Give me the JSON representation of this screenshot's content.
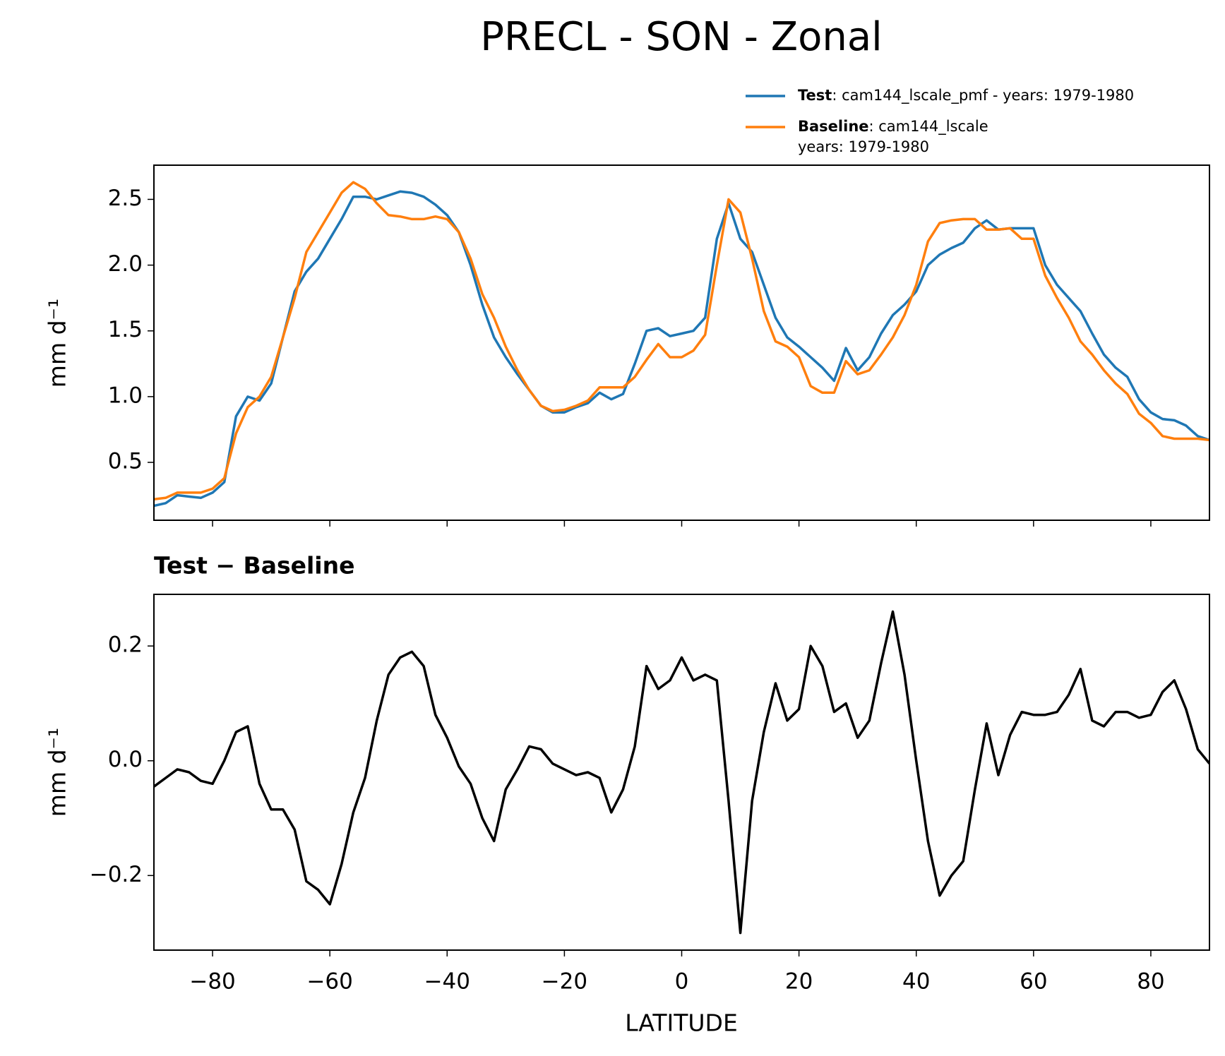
{
  "chart_data": [
    {
      "type": "line",
      "title": "PRECL - SON - Zonal",
      "ylabel": "mm d⁻¹",
      "ylim": [
        0.06,
        2.76
      ],
      "yticks": [
        0.5,
        {
          "value": 1,
          "label": "1.0"
        },
        1.5,
        {
          "value": 2,
          "label": "2.0"
        },
        2.5
      ],
      "grid": false,
      "legend": "upper right",
      "series": [
        {
          "name": "Test",
          "description": [
            ": cam144_lscale_pmf - years: 1979-1980"
          ],
          "color": "#1f77b4",
          "values": [
            0.17,
            0.19,
            0.25,
            0.24,
            0.23,
            0.27,
            0.35,
            0.85,
            1.0,
            0.97,
            1.1,
            1.45,
            1.8,
            1.95,
            2.05,
            2.2,
            2.35,
            2.52,
            2.52,
            2.5,
            2.53,
            2.56,
            2.55,
            2.52,
            2.46,
            2.38,
            2.25,
            2.0,
            1.7,
            1.45,
            1.3,
            1.17,
            1.05,
            0.93,
            0.88,
            0.88,
            0.92,
            0.95,
            1.03,
            0.98,
            1.02,
            1.25,
            1.5,
            1.52,
            1.46,
            1.48,
            1.5,
            1.6,
            2.2,
            2.47,
            2.2,
            2.1,
            1.85,
            1.6,
            1.45,
            1.38,
            1.3,
            1.22,
            1.12,
            1.37,
            1.2,
            1.3,
            1.48,
            1.62,
            1.7,
            1.8,
            2.0,
            2.08,
            2.13,
            2.17,
            2.28,
            2.34,
            2.27,
            2.28,
            2.28,
            2.28,
            2.0,
            1.85,
            1.75,
            1.65,
            1.48,
            1.32,
            1.22,
            1.15,
            0.98,
            0.88,
            0.83,
            0.82,
            0.78,
            0.7,
            0.67
          ]
        },
        {
          "name": "Baseline",
          "description": [
            ": cam144_lscale",
            "years: 1979-1980"
          ],
          "color": "#ff7f0e",
          "values": [
            0.22,
            0.23,
            0.27,
            0.27,
            0.27,
            0.3,
            0.38,
            0.72,
            0.92,
            1.0,
            1.15,
            1.45,
            1.75,
            2.1,
            2.25,
            2.4,
            2.55,
            2.63,
            2.58,
            2.47,
            2.38,
            2.37,
            2.35,
            2.35,
            2.37,
            2.35,
            2.25,
            2.05,
            1.78,
            1.6,
            1.38,
            1.2,
            1.05,
            0.93,
            0.89,
            0.9,
            0.93,
            0.97,
            1.07,
            1.07,
            1.07,
            1.15,
            1.28,
            1.4,
            1.3,
            1.3,
            1.35,
            1.47,
            2.0,
            2.5,
            2.4,
            2.05,
            1.65,
            1.42,
            1.38,
            1.3,
            1.08,
            1.03,
            1.03,
            1.27,
            1.17,
            1.2,
            1.32,
            1.45,
            1.62,
            1.85,
            2.18,
            2.32,
            2.34,
            2.35,
            2.35,
            2.27,
            2.27,
            2.28,
            2.2,
            2.2,
            1.92,
            1.75,
            1.6,
            1.42,
            1.32,
            1.2,
            1.1,
            1.02,
            0.87,
            0.8,
            0.7,
            0.68,
            0.68,
            0.68,
            0.67
          ]
        }
      ]
    },
    {
      "type": "line",
      "title": "Test − Baseline",
      "ylabel": "mm d⁻¹",
      "xlabel": "LATITUDE",
      "x": [
        -90,
        -88,
        -86,
        -84,
        -82,
        -80,
        -78,
        -76,
        -74,
        -72,
        -70,
        -68,
        -66,
        -64,
        -62,
        -60,
        -58,
        -56,
        -54,
        -52,
        -50,
        -48,
        -46,
        -44,
        -42,
        -40,
        -38,
        -36,
        -34,
        -32,
        -30,
        -28,
        -26,
        -24,
        -22,
        -20,
        -18,
        -16,
        -14,
        -12,
        -10,
        -8,
        -6,
        -4,
        -2,
        0,
        2,
        4,
        6,
        8,
        10,
        12,
        14,
        16,
        18,
        20,
        22,
        24,
        26,
        28,
        30,
        32,
        34,
        36,
        38,
        40,
        42,
        44,
        46,
        48,
        50,
        52,
        54,
        56,
        58,
        60,
        62,
        64,
        66,
        68,
        70,
        72,
        74,
        76,
        78,
        80,
        82,
        84,
        86,
        88,
        90
      ],
      "xlim": [
        -90,
        90
      ],
      "xticks": [
        {
          "value": -80,
          "label": "−80"
        },
        {
          "value": -60,
          "label": "−60"
        },
        {
          "value": -40,
          "label": "−40"
        },
        {
          "value": -20,
          "label": "−20"
        },
        0,
        20,
        40,
        60,
        80
      ],
      "ylim": [
        -0.33,
        0.29
      ],
      "yticks": [
        {
          "value": -0.2,
          "label": "−0.2"
        },
        {
          "value": 0,
          "label": "0.0"
        },
        0.2
      ],
      "grid": false,
      "series": [
        {
          "color": "#000000",
          "values": [
            -0.045,
            -0.03,
            -0.015,
            -0.02,
            -0.035,
            -0.04,
            0.0,
            0.05,
            0.06,
            -0.04,
            -0.085,
            -0.085,
            -0.12,
            -0.21,
            -0.225,
            -0.25,
            -0.18,
            -0.09,
            -0.03,
            0.07,
            0.15,
            0.18,
            0.19,
            0.165,
            0.08,
            0.04,
            -0.01,
            -0.04,
            -0.1,
            -0.14,
            -0.05,
            -0.015,
            0.025,
            0.02,
            -0.005,
            -0.015,
            -0.025,
            -0.02,
            -0.03,
            -0.09,
            -0.05,
            0.025,
            0.165,
            0.125,
            0.14,
            0.18,
            0.14,
            0.15,
            0.14,
            -0.07,
            -0.3,
            -0.07,
            0.05,
            0.135,
            0.07,
            0.09,
            0.2,
            0.165,
            0.085,
            0.1,
            0.04,
            0.07,
            0.17,
            0.26,
            0.15,
            0.0,
            -0.14,
            -0.235,
            -0.2,
            -0.175,
            -0.05,
            0.065,
            -0.025,
            0.045,
            0.085,
            0.08,
            0.08,
            0.085,
            0.115,
            0.16,
            0.07,
            0.06,
            0.085,
            0.085,
            0.075,
            0.08,
            0.12,
            0.14,
            0.09,
            0.02,
            -0.005
          ]
        }
      ]
    }
  ]
}
